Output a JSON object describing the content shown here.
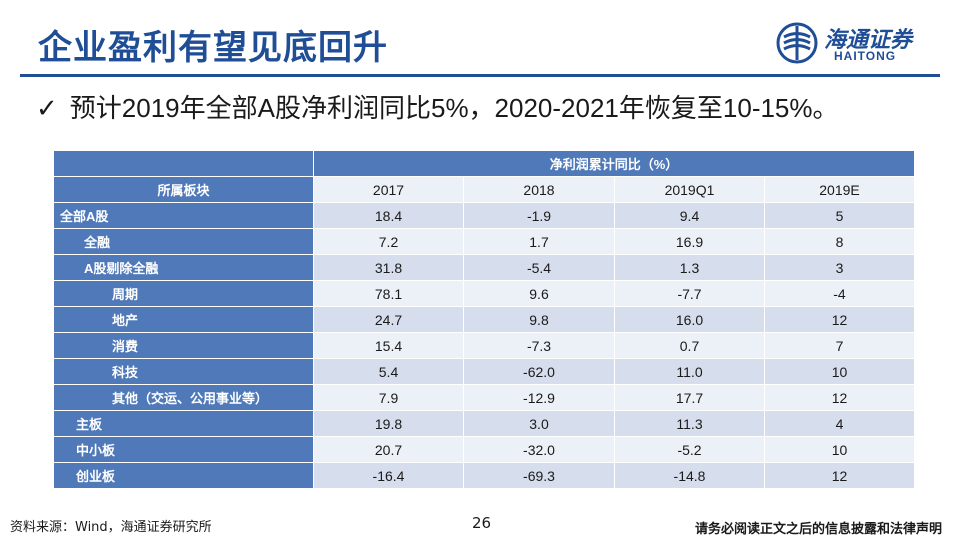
{
  "title": "企业盈利有望见底回升",
  "logo": {
    "cn": "海通证券",
    "en": "HAITONG"
  },
  "bullet": {
    "check": "✓",
    "text": "预计2019年全部A股净利润同比5%，2020-2021年恢复至10-15%。"
  },
  "table": {
    "group_header": "净利润累计同比（%）",
    "row_header": "所属板块",
    "columns": [
      "2017",
      "2018",
      "2019Q1",
      "2019E"
    ],
    "rows": [
      {
        "label": "全部A股",
        "values": [
          "18.4",
          "-1.9",
          "9.4",
          "5"
        ]
      },
      {
        "label": "全融",
        "values": [
          "7.2",
          "1.7",
          "16.9",
          "8"
        ]
      },
      {
        "label": "A股剔除全融",
        "values": [
          "31.8",
          "-5.4",
          "1.3",
          "3"
        ]
      },
      {
        "label": "周期",
        "values": [
          "78.1",
          "9.6",
          "-7.7",
          "-4"
        ]
      },
      {
        "label": "地产",
        "values": [
          "24.7",
          "9.8",
          "16.0",
          "12"
        ]
      },
      {
        "label": "消费",
        "values": [
          "15.4",
          "-7.3",
          "0.7",
          "7"
        ]
      },
      {
        "label": "科技",
        "values": [
          "5.4",
          "-62.0",
          "11.0",
          "10"
        ]
      },
      {
        "label": "其他（交运、公用事业等）",
        "values": [
          "7.9",
          "-12.9",
          "17.7",
          "12"
        ]
      },
      {
        "label": "主板",
        "values": [
          "19.8",
          "3.0",
          "11.3",
          "4"
        ]
      },
      {
        "label": "中小板",
        "values": [
          "20.7",
          "-32.0",
          "-5.2",
          "10"
        ]
      },
      {
        "label": "创业板",
        "values": [
          "-16.4",
          "-69.3",
          "-14.8",
          "12"
        ]
      }
    ]
  },
  "footer": {
    "source": "资料来源：Wind，海通证券研究所",
    "page": "26",
    "disclaimer": "请务必阅读正文之后的信息披露和法律声明"
  },
  "colors": {
    "brand": "#1f4e96",
    "header": "#4f79b8",
    "row_odd": "#d6deee",
    "row_even": "#ecf0f7"
  },
  "icons": {
    "logo": "haitong-logo-icon",
    "bullet": "checkmark-icon"
  }
}
